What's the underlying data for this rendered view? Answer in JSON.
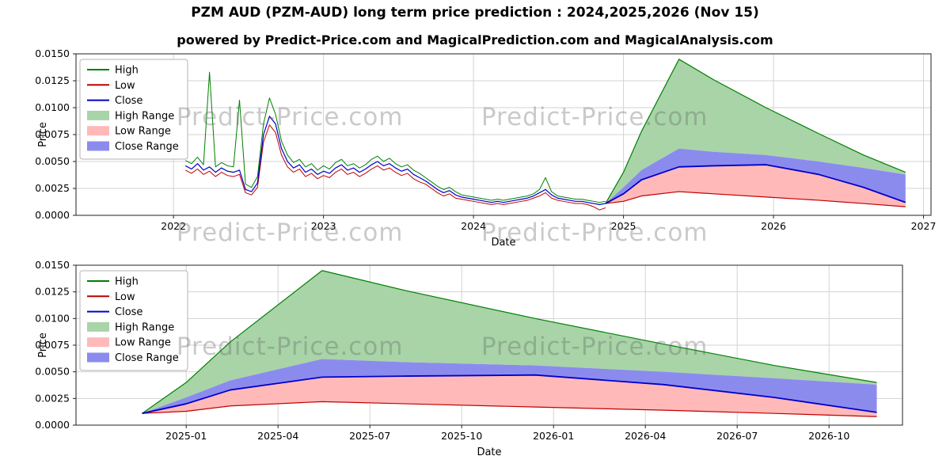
{
  "page": {
    "title": "PZM AUD (PZM-AUD) long term price prediction : 2024,2025,2026 (Nov 15)",
    "subtitle": "powered by Predict-Price.com and MagicalPrediction.com and MagicalAnalysis.com",
    "watermark": " Predict-Price.com "
  },
  "colors": {
    "high": "#008000",
    "low": "#c00000",
    "close": "#0000cd",
    "high_range": "#a8d4a8",
    "low_range": "#ffb9b9",
    "close_range": "#8b8bee",
    "grid": "#d3d3d3",
    "axis": "#222222"
  },
  "legend": [
    {
      "label": "High",
      "swatch": "line",
      "color": "high"
    },
    {
      "label": "Low",
      "swatch": "line",
      "color": "low"
    },
    {
      "label": "Close",
      "swatch": "line",
      "color": "close"
    },
    {
      "label": "High Range",
      "swatch": "patch",
      "color": "high_range"
    },
    {
      "label": "Low Range",
      "swatch": "patch",
      "color": "low_range"
    },
    {
      "label": "Close Range",
      "swatch": "patch",
      "color": "close_range"
    }
  ],
  "chart_data": [
    {
      "type": "line",
      "name": "history-and-forecast",
      "xlabel": "Date",
      "ylabel": "Price",
      "xlim": [
        2021.35,
        2027.05
      ],
      "ylim": [
        0,
        0.015
      ],
      "grid": true,
      "legend_position": "upper left",
      "xticks": [
        2022,
        2023,
        2024,
        2025,
        2026,
        2027
      ],
      "xtick_labels": [
        "2022",
        "2023",
        "2024",
        "2025",
        "2026",
        "2027"
      ],
      "yticks": [
        0,
        0.0025,
        0.005,
        0.0075,
        0.01,
        0.0125,
        0.015
      ],
      "ytick_labels": [
        "0.0000",
        "0.0025",
        "0.0050",
        "0.0075",
        "0.0100",
        "0.0125",
        "0.0150"
      ],
      "series": {
        "history": {
          "x_start": 2022.08,
          "x_step": 0.04,
          "close": [
            0.0046,
            0.0043,
            0.0048,
            0.0042,
            0.0045,
            0.004,
            0.0044,
            0.0041,
            0.004,
            0.0042,
            0.0024,
            0.0022,
            0.003,
            0.0075,
            0.0092,
            0.0085,
            0.0062,
            0.005,
            0.0044,
            0.0047,
            0.004,
            0.0043,
            0.0038,
            0.0041,
            0.0039,
            0.0044,
            0.0047,
            0.0042,
            0.0044,
            0.004,
            0.0043,
            0.0047,
            0.005,
            0.0046,
            0.0048,
            0.0044,
            0.0041,
            0.0043,
            0.0038,
            0.0035,
            0.0032,
            0.0028,
            0.0024,
            0.0021,
            0.0023,
            0.0019,
            0.0017,
            0.0016,
            0.0015,
            0.0014,
            0.0013,
            0.0012,
            0.0013,
            0.0012,
            0.0013,
            0.0014,
            0.0015,
            0.0016,
            0.0018,
            0.0021,
            0.0024,
            0.0019,
            0.0016,
            0.0015,
            0.0014,
            0.0013,
            0.0013,
            0.0012,
            0.0011,
            0.001,
            0.0011
          ],
          "high": [
            0.0051,
            0.0048,
            0.0054,
            0.0047,
            0.0133,
            0.0045,
            0.0049,
            0.0046,
            0.0045,
            0.0107,
            0.0029,
            0.0026,
            0.0036,
            0.0085,
            0.0109,
            0.0094,
            0.0069,
            0.0056,
            0.0049,
            0.0052,
            0.0045,
            0.0048,
            0.0042,
            0.0046,
            0.0043,
            0.0049,
            0.0052,
            0.0046,
            0.0048,
            0.0044,
            0.0047,
            0.0052,
            0.0055,
            0.005,
            0.0053,
            0.0048,
            0.0045,
            0.0047,
            0.0042,
            0.0039,
            0.0035,
            0.0031,
            0.0027,
            0.0024,
            0.0026,
            0.0022,
            0.0019,
            0.0018,
            0.0017,
            0.0016,
            0.0015,
            0.0014,
            0.0015,
            0.0014,
            0.0015,
            0.0016,
            0.0017,
            0.0018,
            0.002,
            0.0024,
            0.0035,
            0.0022,
            0.0018,
            0.0017,
            0.0016,
            0.0015,
            0.0015,
            0.0014,
            0.0013,
            0.0012,
            0.0013
          ],
          "low": [
            0.0042,
            0.0039,
            0.0043,
            0.0038,
            0.0041,
            0.0036,
            0.004,
            0.0037,
            0.0036,
            0.0038,
            0.0021,
            0.0019,
            0.0026,
            0.0068,
            0.0084,
            0.0077,
            0.0056,
            0.0045,
            0.004,
            0.0043,
            0.0036,
            0.0039,
            0.0034,
            0.0037,
            0.0035,
            0.004,
            0.0043,
            0.0038,
            0.004,
            0.0036,
            0.0039,
            0.0043,
            0.0046,
            0.0042,
            0.0044,
            0.004,
            0.0037,
            0.0039,
            0.0034,
            0.0031,
            0.0029,
            0.0025,
            0.0021,
            0.0018,
            0.002,
            0.0016,
            0.0015,
            0.0014,
            0.0013,
            0.0012,
            0.0011,
            0.001,
            0.0011,
            0.001,
            0.0011,
            0.0012,
            0.0013,
            0.0014,
            0.0016,
            0.0018,
            0.0021,
            0.0016,
            0.0014,
            0.0013,
            0.0012,
            0.0011,
            0.0011,
            0.001,
            0.0008,
            0.0005,
            0.0007
          ]
        },
        "forecast": {
          "x": [
            2024.88,
            2025.0,
            2025.12,
            2025.37,
            2025.6,
            2025.95,
            2026.3,
            2026.6,
            2026.88
          ],
          "high": [
            0.0011,
            0.004,
            0.0078,
            0.0145,
            0.0126,
            0.01,
            0.0076,
            0.0056,
            0.004
          ],
          "close_upper": [
            0.0011,
            0.0026,
            0.0042,
            0.0062,
            0.0059,
            0.0056,
            0.005,
            0.0044,
            0.0038
          ],
          "close": [
            0.0011,
            0.002,
            0.0033,
            0.0045,
            0.0046,
            0.0047,
            0.0038,
            0.0026,
            0.0012
          ],
          "low": [
            0.0011,
            0.0013,
            0.0018,
            0.0022,
            0.002,
            0.0017,
            0.0014,
            0.0011,
            0.0008
          ]
        }
      }
    },
    {
      "type": "line",
      "name": "forecast-detail",
      "xlabel": "Date",
      "ylabel": "Price",
      "xlim": [
        2024.7,
        2026.95
      ],
      "ylim": [
        0,
        0.015
      ],
      "grid": true,
      "legend_position": "upper left",
      "xticks": [
        2025.0,
        2025.25,
        2025.5,
        2025.75,
        2026.0,
        2026.25,
        2026.5,
        2026.75
      ],
      "xtick_labels": [
        "2025-01",
        "2025-04",
        "2025-07",
        "2025-10",
        "2026-01",
        "2026-04",
        "2026-07",
        "2026-10"
      ],
      "yticks": [
        0,
        0.0025,
        0.005,
        0.0075,
        0.01,
        0.0125,
        0.015
      ],
      "ytick_labels": [
        "0.0000",
        "0.0025",
        "0.0050",
        "0.0075",
        "0.0100",
        "0.0125",
        "0.0150"
      ],
      "series": {
        "forecast": {
          "x": [
            2024.88,
            2025.0,
            2025.12,
            2025.37,
            2025.6,
            2025.95,
            2026.3,
            2026.6,
            2026.88
          ],
          "high": [
            0.0011,
            0.004,
            0.0078,
            0.0145,
            0.0126,
            0.01,
            0.0076,
            0.0056,
            0.004
          ],
          "close_upper": [
            0.0011,
            0.0026,
            0.0042,
            0.0062,
            0.0059,
            0.0056,
            0.005,
            0.0044,
            0.0038
          ],
          "close": [
            0.0011,
            0.002,
            0.0033,
            0.0045,
            0.0046,
            0.0047,
            0.0038,
            0.0026,
            0.0012
          ],
          "low": [
            0.0011,
            0.0013,
            0.0018,
            0.0022,
            0.002,
            0.0017,
            0.0014,
            0.0011,
            0.0008
          ]
        }
      }
    }
  ]
}
